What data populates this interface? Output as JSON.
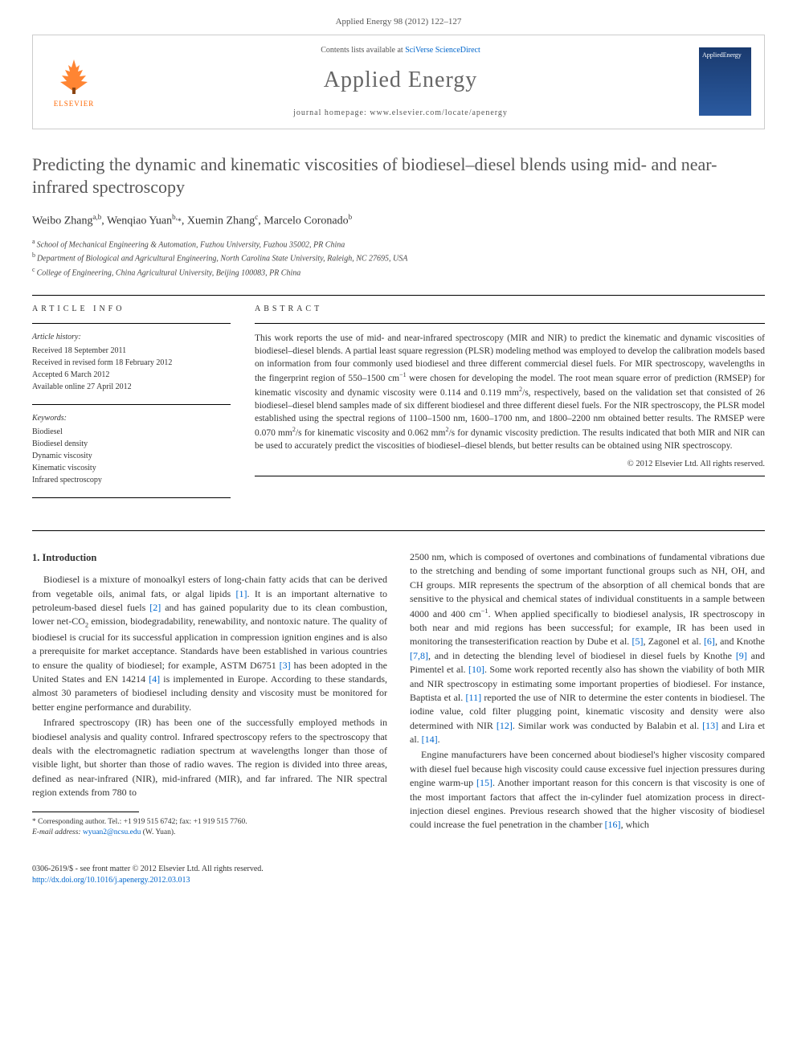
{
  "citation": "Applied Energy 98 (2012) 122–127",
  "masthead": {
    "publisher_name": "ELSEVIER",
    "contents_prefix": "Contents lists available at ",
    "contents_link": "SciVerse ScienceDirect",
    "journal_name": "Applied Energy",
    "homepage_prefix": "journal homepage: ",
    "homepage_url": "www.elsevier.com/locate/apenergy",
    "cover_label": "AppliedEnergy"
  },
  "article": {
    "title": "Predicting the dynamic and kinematic viscosities of biodiesel–diesel blends using mid- and near-infrared spectroscopy",
    "authors_html": "Weibo Zhang<sup>a,b</sup>, Wenqiao Yuan<sup>b,</sup><span class=\"corr\">*</span>, Xuemin Zhang<sup>c</sup>, Marcelo Coronado<sup>b</sup>",
    "affiliations": [
      {
        "sup": "a",
        "text": "School of Mechanical Engineering & Automation, Fuzhou University, Fuzhou 35002, PR China"
      },
      {
        "sup": "b",
        "text": "Department of Biological and Agricultural Engineering, North Carolina State University, Raleigh, NC 27695, USA"
      },
      {
        "sup": "c",
        "text": "College of Engineering, China Agricultural University, Beijing 100083, PR China"
      }
    ]
  },
  "info": {
    "label": "ARTICLE INFO",
    "history_heading": "Article history:",
    "history": [
      "Received 18 September 2011",
      "Received in revised form 18 February 2012",
      "Accepted 6 March 2012",
      "Available online 27 April 2012"
    ],
    "keywords_heading": "Keywords:",
    "keywords": [
      "Biodiesel",
      "Biodiesel density",
      "Dynamic viscosity",
      "Kinematic viscosity",
      "Infrared spectroscopy"
    ]
  },
  "abstract": {
    "label": "ABSTRACT",
    "text_html": "This work reports the use of mid- and near-infrared spectroscopy (MIR and NIR) to predict the kinematic and dynamic viscosities of biodiesel–diesel blends. A partial least square regression (PLSR) modeling method was employed to develop the calibration models based on information from four commonly used biodiesel and three different commercial diesel fuels. For MIR spectroscopy, wavelengths in the fingerprint region of 550–1500 cm<sup>−1</sup> were chosen for developing the model. The root mean square error of prediction (RMSEP) for kinematic viscosity and dynamic viscosity were 0.114 and 0.119 mm<sup>2</sup>/s, respectively, based on the validation set that consisted of 26 biodiesel–diesel blend samples made of six different biodiesel and three different diesel fuels. For the NIR spectroscopy, the PLSR model established using the spectral regions of 1100–1500 nm, 1600–1700 nm, and 1800–2200 nm obtained better results. The RMSEP were 0.070 mm<sup>2</sup>/s for kinematic viscosity and 0.062 mm<sup>2</sup>/s for dynamic viscosity prediction. The results indicated that both MIR and NIR can be used to accurately predict the viscosities of biodiesel–diesel blends, but better results can be obtained using NIR spectroscopy.",
    "copyright": "© 2012 Elsevier Ltd. All rights reserved."
  },
  "body": {
    "section_heading": "1. Introduction",
    "p1_html": "Biodiesel is a mixture of monoalkyl esters of long-chain fatty acids that can be derived from vegetable oils, animal fats, or algal lipids <span class=\"ref-link\">[1]</span>. It is an important alternative to petroleum-based diesel fuels <span class=\"ref-link\">[2]</span> and has gained popularity due to its clean combustion, lower net-CO<sub>2</sub> emission, biodegradability, renewability, and nontoxic nature. The quality of biodiesel is crucial for its successful application in compression ignition engines and is also a prerequisite for market acceptance. Standards have been established in various countries to ensure the quality of biodiesel; for example, ASTM D6751 <span class=\"ref-link\">[3]</span> has been adopted in the United States and EN 14214 <span class=\"ref-link\">[4]</span> is implemented in Europe. According to these standards, almost 30 parameters of biodiesel including density and viscosity must be monitored for better engine performance and durability.",
    "p2_html": "Infrared spectroscopy (IR) has been one of the successfully employed methods in biodiesel analysis and quality control. Infrared spectroscopy refers to the spectroscopy that deals with the electromagnetic radiation spectrum at wavelengths longer than those of visible light, but shorter than those of radio waves. The region is divided into three areas, defined as near-infrared (NIR), mid-infrared (MIR), and far infrared. The NIR spectral region extends from 780 to",
    "p3_html": "2500 nm, which is composed of overtones and combinations of fundamental vibrations due to the stretching and bending of some important functional groups such as NH, OH, and CH groups. MIR represents the spectrum of the absorption of all chemical bonds that are sensitive to the physical and chemical states of individual constituents in a sample between 4000 and 400 cm<sup>−1</sup>. When applied specifically to biodiesel analysis, IR spectroscopy in both near and mid regions has been successful; for example, IR has been used in monitoring the transesterification reaction by Dube et al. <span class=\"ref-link\">[5]</span>, Zagonel et al. <span class=\"ref-link\">[6]</span>, and Knothe <span class=\"ref-link\">[7,8]</span>, and in detecting the blending level of biodiesel in diesel fuels by Knothe <span class=\"ref-link\">[9]</span> and Pimentel et al. <span class=\"ref-link\">[10]</span>. Some work reported recently also has shown the viability of both MIR and NIR spectroscopy in estimating some important properties of biodiesel. For instance, Baptista et al. <span class=\"ref-link\">[11]</span> reported the use of NIR to determine the ester contents in biodiesel. The iodine value, cold filter plugging point, kinematic viscosity and density were also determined with NIR <span class=\"ref-link\">[12]</span>. Similar work was conducted by Balabin et al. <span class=\"ref-link\">[13]</span> and Lira et al. <span class=\"ref-link\">[14]</span>.",
    "p4_html": "Engine manufacturers have been concerned about biodiesel's higher viscosity compared with diesel fuel because high viscosity could cause excessive fuel injection pressures during engine warm-up <span class=\"ref-link\">[15]</span>. Another important reason for this concern is that viscosity is one of the most important factors that affect the in-cylinder fuel atomization process in direct-injection diesel engines. Previous research showed that the higher viscosity of biodiesel could increase the fuel penetration in the chamber <span class=\"ref-link\">[16]</span>, which"
  },
  "footnote": {
    "corr_line": "* Corresponding author. Tel.: +1 919 515 6742; fax: +1 919 515 7760.",
    "email_label": "E-mail address:",
    "email": "wyuan2@ncsu.edu",
    "email_name": "(W. Yuan)."
  },
  "footer": {
    "left_line1": "0306-2619/$ - see front matter © 2012 Elsevier Ltd. All rights reserved.",
    "left_line2": "http://dx.doi.org/10.1016/j.apenergy.2012.03.013"
  },
  "colors": {
    "link": "#0066cc",
    "publisher": "#ff6600",
    "title": "#555555",
    "text": "#333333"
  }
}
